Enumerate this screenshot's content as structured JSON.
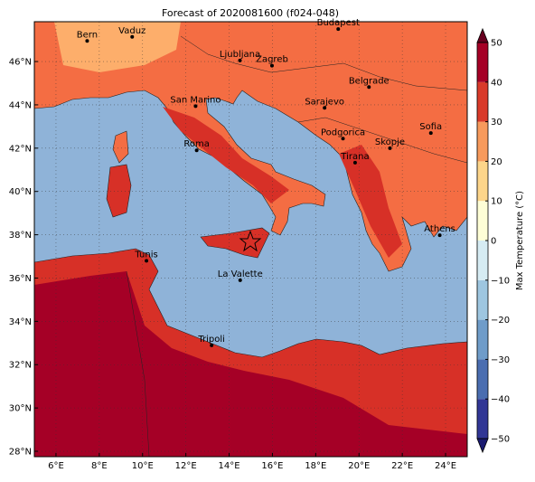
{
  "map": {
    "title": "Forecast of 2020081600 (f024-048)",
    "xlim": [
      5,
      25
    ],
    "ylim": [
      27.75,
      47.84
    ],
    "xticks": [
      {
        "value": 6,
        "label": "6°E"
      },
      {
        "value": 8,
        "label": "8°E"
      },
      {
        "value": 10,
        "label": "10°E"
      },
      {
        "value": 12,
        "label": "12°E"
      },
      {
        "value": 14,
        "label": "14°E"
      },
      {
        "value": 16,
        "label": "16°E"
      },
      {
        "value": 18,
        "label": "18°E"
      },
      {
        "value": 20,
        "label": "20°E"
      },
      {
        "value": 22,
        "label": "22°E"
      },
      {
        "value": 24,
        "label": "24°E"
      }
    ],
    "yticks": [
      {
        "value": 28,
        "label": "28°N"
      },
      {
        "value": 30,
        "label": "30°N"
      },
      {
        "value": 32,
        "label": "32°N"
      },
      {
        "value": 34,
        "label": "34°N"
      },
      {
        "value": 36,
        "label": "36°N"
      },
      {
        "value": 38,
        "label": "38°N"
      },
      {
        "value": 40,
        "label": "40°N"
      },
      {
        "value": 42,
        "label": "42°N"
      },
      {
        "value": 44,
        "label": "44°N"
      },
      {
        "value": 46,
        "label": "46°N"
      }
    ],
    "grid": true,
    "cities": [
      {
        "name": "Bern",
        "lon": 7.44,
        "lat": 46.95
      },
      {
        "name": "Vaduz",
        "lon": 9.52,
        "lat": 47.14
      },
      {
        "name": "Budapest",
        "lon": 19.04,
        "lat": 47.5
      },
      {
        "name": "Ljubljana",
        "lon": 14.5,
        "lat": 46.05
      },
      {
        "name": "Zagreb",
        "lon": 15.98,
        "lat": 45.81
      },
      {
        "name": "Belgrade",
        "lon": 20.46,
        "lat": 44.82
      },
      {
        "name": "San Marino",
        "lon": 12.45,
        "lat": 43.94
      },
      {
        "name": "Sarajevo",
        "lon": 18.41,
        "lat": 43.86
      },
      {
        "name": "Sofia",
        "lon": 23.32,
        "lat": 42.7
      },
      {
        "name": "Podgorica",
        "lon": 19.26,
        "lat": 42.44
      },
      {
        "name": "Skopje",
        "lon": 21.43,
        "lat": 42.0
      },
      {
        "name": "Roma",
        "lon": 12.5,
        "lat": 41.9
      },
      {
        "name": "Tirana",
        "lon": 19.82,
        "lat": 41.33
      },
      {
        "name": "Athens",
        "lon": 23.73,
        "lat": 37.98
      },
      {
        "name": "Tunis",
        "lon": 10.18,
        "lat": 36.8
      },
      {
        "name": "La Valette",
        "lon": 14.51,
        "lat": 35.9
      },
      {
        "name": "Tripoli",
        "lon": 13.19,
        "lat": 32.89
      }
    ],
    "colorbar": {
      "label": "Max Temperature (°C)",
      "lim": [
        -50,
        50
      ],
      "ticks": [
        {
          "value": -50,
          "label": "−50"
        },
        {
          "value": -40,
          "label": "−40"
        },
        {
          "value": -30,
          "label": "−30"
        },
        {
          "value": -20,
          "label": "−20"
        },
        {
          "value": -10,
          "label": "−10"
        },
        0,
        10,
        20,
        30,
        40,
        50
      ],
      "colors": [
        "#313695",
        "#4a6db0",
        "#6f9cc9",
        "#9ec6e0",
        "#d6ecf3",
        "#fefed6",
        "#fdd58a",
        "#f79a5c",
        "#d93a2a",
        "#a50026"
      ],
      "under": "#1a1a70",
      "over": "#67001f"
    }
  }
}
